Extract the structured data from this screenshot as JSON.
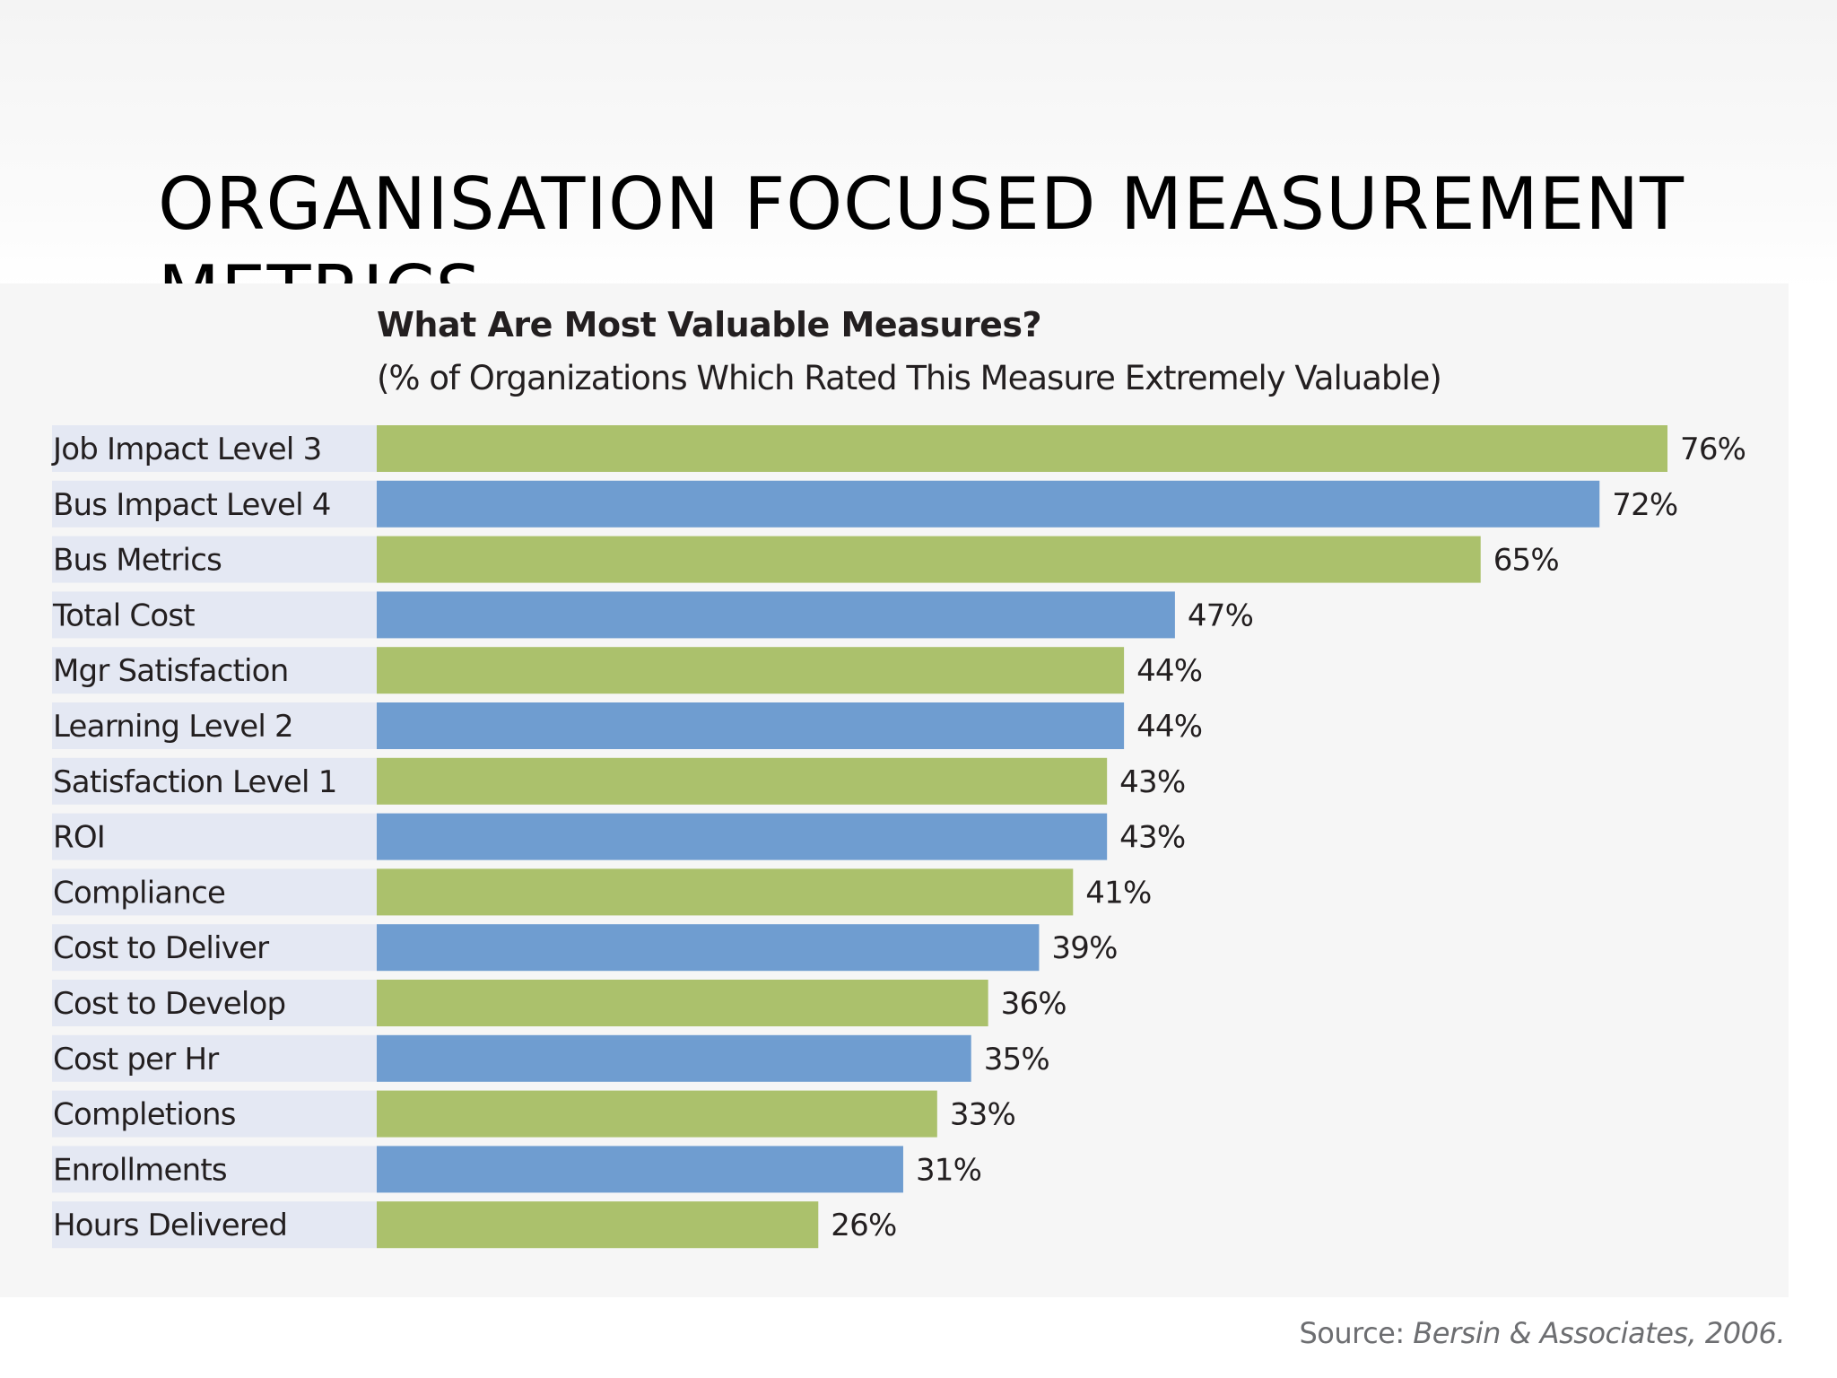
{
  "slide": {
    "title": "ORGANISATION FOCUSED MEASUREMENT",
    "title_line2": "METRICS"
  },
  "source": {
    "label": "Source:",
    "text": "Bersin & Associates, 2006."
  },
  "chart_data": {
    "type": "bar",
    "orientation": "horizontal",
    "title": "What Are Most Valuable Measures?",
    "subtitle": "(% of Organizations Which Rated This Measure Extremely Valuable)",
    "categories": [
      "Job Impact Level 3",
      "Bus Impact Level 4",
      "Bus Metrics",
      "Total Cost",
      "Mgr Satisfaction",
      "Learning Level 2",
      "Satisfaction Level 1",
      "ROI",
      "Compliance",
      "Cost to Deliver",
      "Cost to Develop",
      "Cost per Hr",
      "Completions",
      "Enrollments",
      "Hours Delivered"
    ],
    "values": [
      76,
      72,
      65,
      47,
      44,
      44,
      43,
      43,
      41,
      39,
      36,
      35,
      33,
      31,
      26
    ],
    "value_labels": [
      "76%",
      "72%",
      "65%",
      "47%",
      "44%",
      "44%",
      "43%",
      "43%",
      "41%",
      "39%",
      "36%",
      "35%",
      "33%",
      "31%",
      "26%"
    ],
    "xlim": [
      0,
      76
    ],
    "grid": false,
    "colors": {
      "green": "#abc16c",
      "blue": "#6f9dd0",
      "label_band": "#e4e8f3",
      "text": "#231f20"
    }
  }
}
